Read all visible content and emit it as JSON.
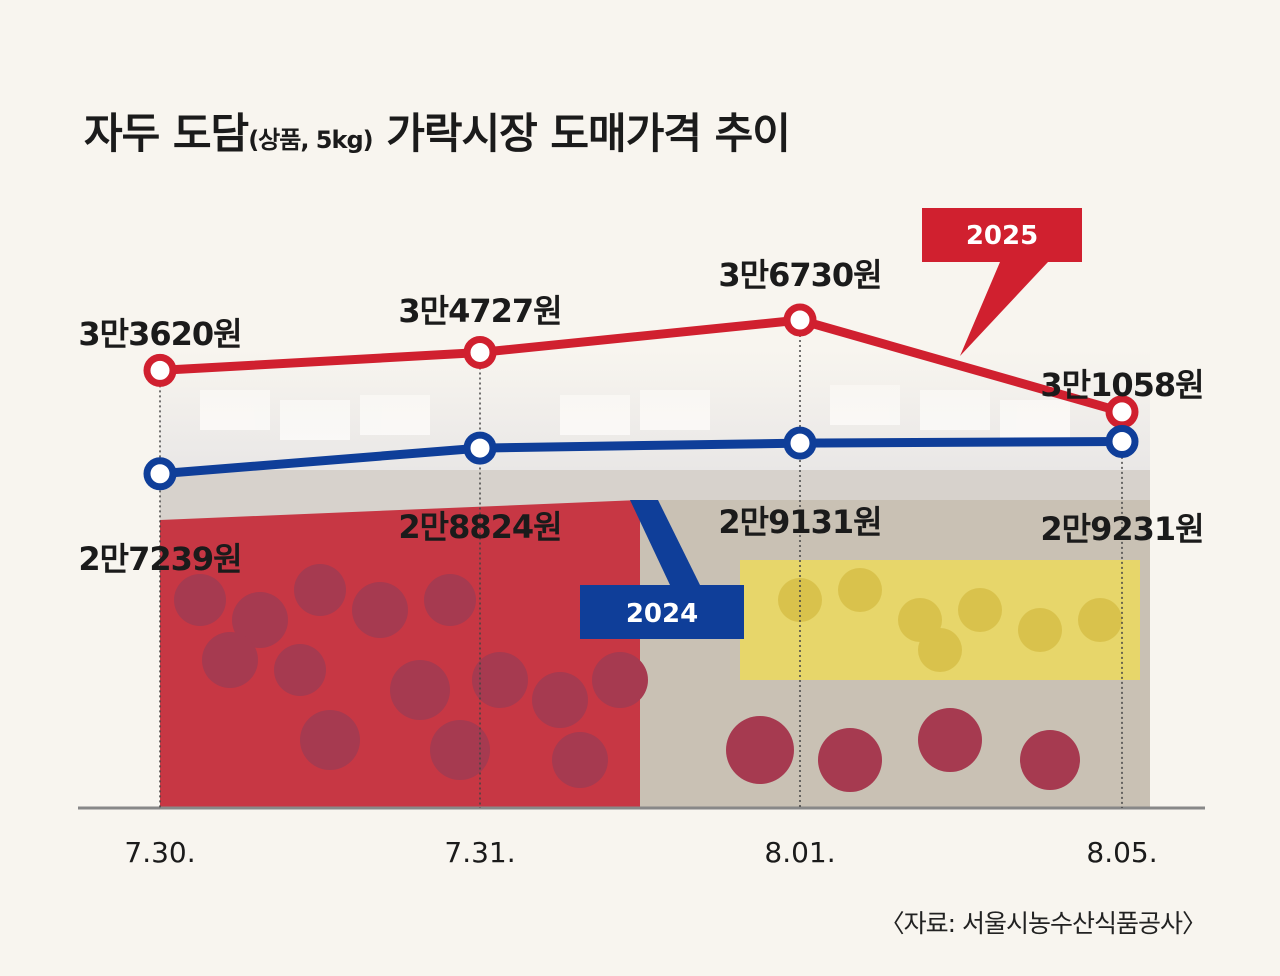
{
  "title": {
    "main_before": "자두 도담",
    "paren": "(상품, 5kg)",
    "main_after": " 가락시장 도매가격 추이"
  },
  "source": "〈자료: 서울시농수산식품공사〉",
  "colors": {
    "series_2025": "#d0202f",
    "series_2024": "#0f3e99",
    "background": "#f8f5ef"
  },
  "chart_data": {
    "type": "line",
    "title": "자두 도담(상품, 5kg) 가락시장 도매가격 추이",
    "categories": [
      "7.30.",
      "7.31.",
      "8.01.",
      "8.05."
    ],
    "unit": "원",
    "grid": false,
    "series": [
      {
        "name": "2025",
        "values": [
          33620,
          34727,
          36730,
          31058
        ],
        "labels": [
          "3만3620원",
          "3만4727원",
          "3만6730원",
          "3만1058원"
        ]
      },
      {
        "name": "2024",
        "values": [
          27239,
          28824,
          29131,
          29231
        ],
        "labels": [
          "2만7239원",
          "2만8824원",
          "2만9131원",
          "2만9231원"
        ]
      }
    ]
  }
}
